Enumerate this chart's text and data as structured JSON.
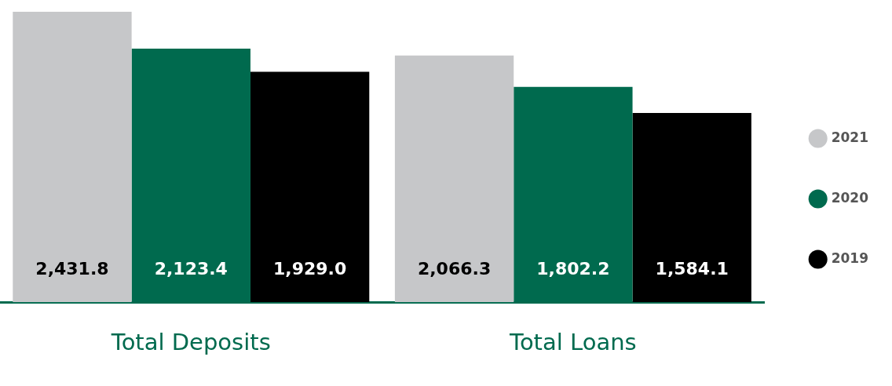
{
  "chart_data": {
    "type": "bar",
    "categories": [
      "Total Deposits",
      "Total Loans"
    ],
    "series": [
      {
        "name": "2021",
        "color": "#c6c7c9",
        "values": [
          2431.8,
          2066.3
        ],
        "value_labels": [
          "2,431.8",
          "2,066.3"
        ]
      },
      {
        "name": "2020",
        "color": "#006a4e",
        "values": [
          2123.4,
          1802.2
        ],
        "value_labels": [
          "2,123.4",
          "1,802.2"
        ]
      },
      {
        "name": "2019",
        "color": "#000000",
        "values": [
          1929.0,
          1584.1
        ],
        "value_labels": [
          "1,929.0",
          "1,584.1"
        ]
      }
    ],
    "legend": "right",
    "grid": false,
    "tick_labels": "x"
  }
}
